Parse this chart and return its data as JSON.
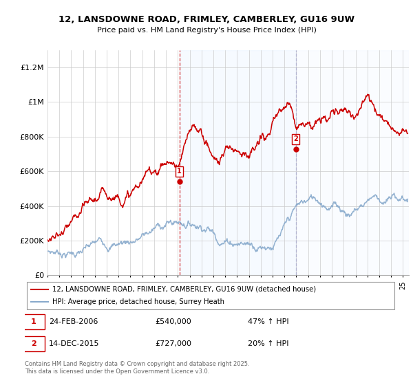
{
  "title_line1": "12, LANSDOWNE ROAD, FRIMLEY, CAMBERLEY, GU16 9UW",
  "title_line2": "Price paid vs. HM Land Registry's House Price Index (HPI)",
  "ylabel_ticks": [
    "£0",
    "£200K",
    "£400K",
    "£600K",
    "£800K",
    "£1M",
    "£1.2M"
  ],
  "ytick_values": [
    0,
    200000,
    400000,
    600000,
    800000,
    1000000,
    1200000
  ],
  "ylim": [
    0,
    1300000
  ],
  "xlim_start": 1995.0,
  "xlim_end": 2025.5,
  "sale1_x": 2006.13,
  "sale1_y": 540000,
  "sale2_x": 2015.95,
  "sale2_y": 727000,
  "legend_line1": "12, LANSDOWNE ROAD, FRIMLEY, CAMBERLEY, GU16 9UW (detached house)",
  "legend_line2": "HPI: Average price, detached house, Surrey Heath",
  "ann1_date": "24-FEB-2006",
  "ann1_price": "£540,000",
  "ann1_hpi": "47% ↑ HPI",
  "ann2_date": "14-DEC-2015",
  "ann2_price": "£727,000",
  "ann2_hpi": "20% ↑ HPI",
  "footer": "Contains HM Land Registry data © Crown copyright and database right 2025.\nThis data is licensed under the Open Government Licence v3.0.",
  "red_color": "#cc0000",
  "blue_color": "#88aacc",
  "shade_color": "#ddeeff",
  "grid_color": "#cccccc"
}
